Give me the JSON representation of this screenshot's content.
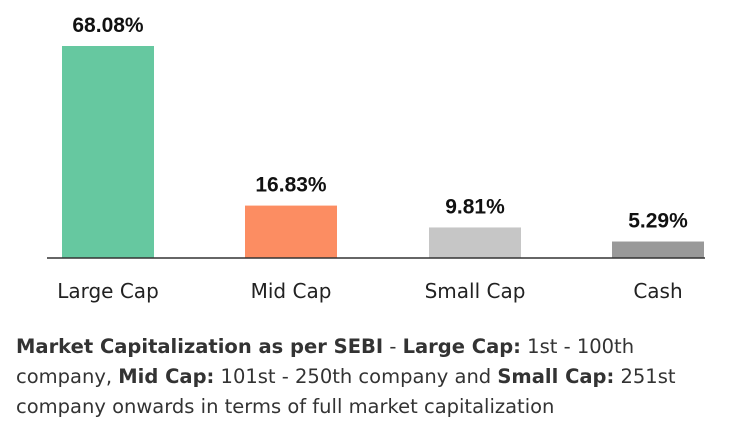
{
  "chart_data": {
    "type": "bar",
    "categories": [
      "Large Cap",
      "Mid Cap",
      "Small Cap",
      "Cash"
    ],
    "values": [
      68.08,
      16.83,
      9.81,
      5.29
    ],
    "value_labels": [
      "68.08%",
      "16.83%",
      "9.81%",
      "5.29%"
    ],
    "colors": [
      "#66c8a0",
      "#fc8d62",
      "#c6c6c6",
      "#999999"
    ],
    "ylim": [
      0,
      68.08
    ],
    "grid": false,
    "legend": "none"
  },
  "note": {
    "title": "Market Capitalization as per SEBI",
    "sep1": " - ",
    "large_label": "Large Cap:",
    "large_text": " 1st - 100th company, ",
    "mid_label": "Mid Cap:",
    "mid_text": " 101st - 250th company and ",
    "small_label": "Small Cap:",
    "small_text": " 251st company onwards in terms of full market capitalization"
  }
}
